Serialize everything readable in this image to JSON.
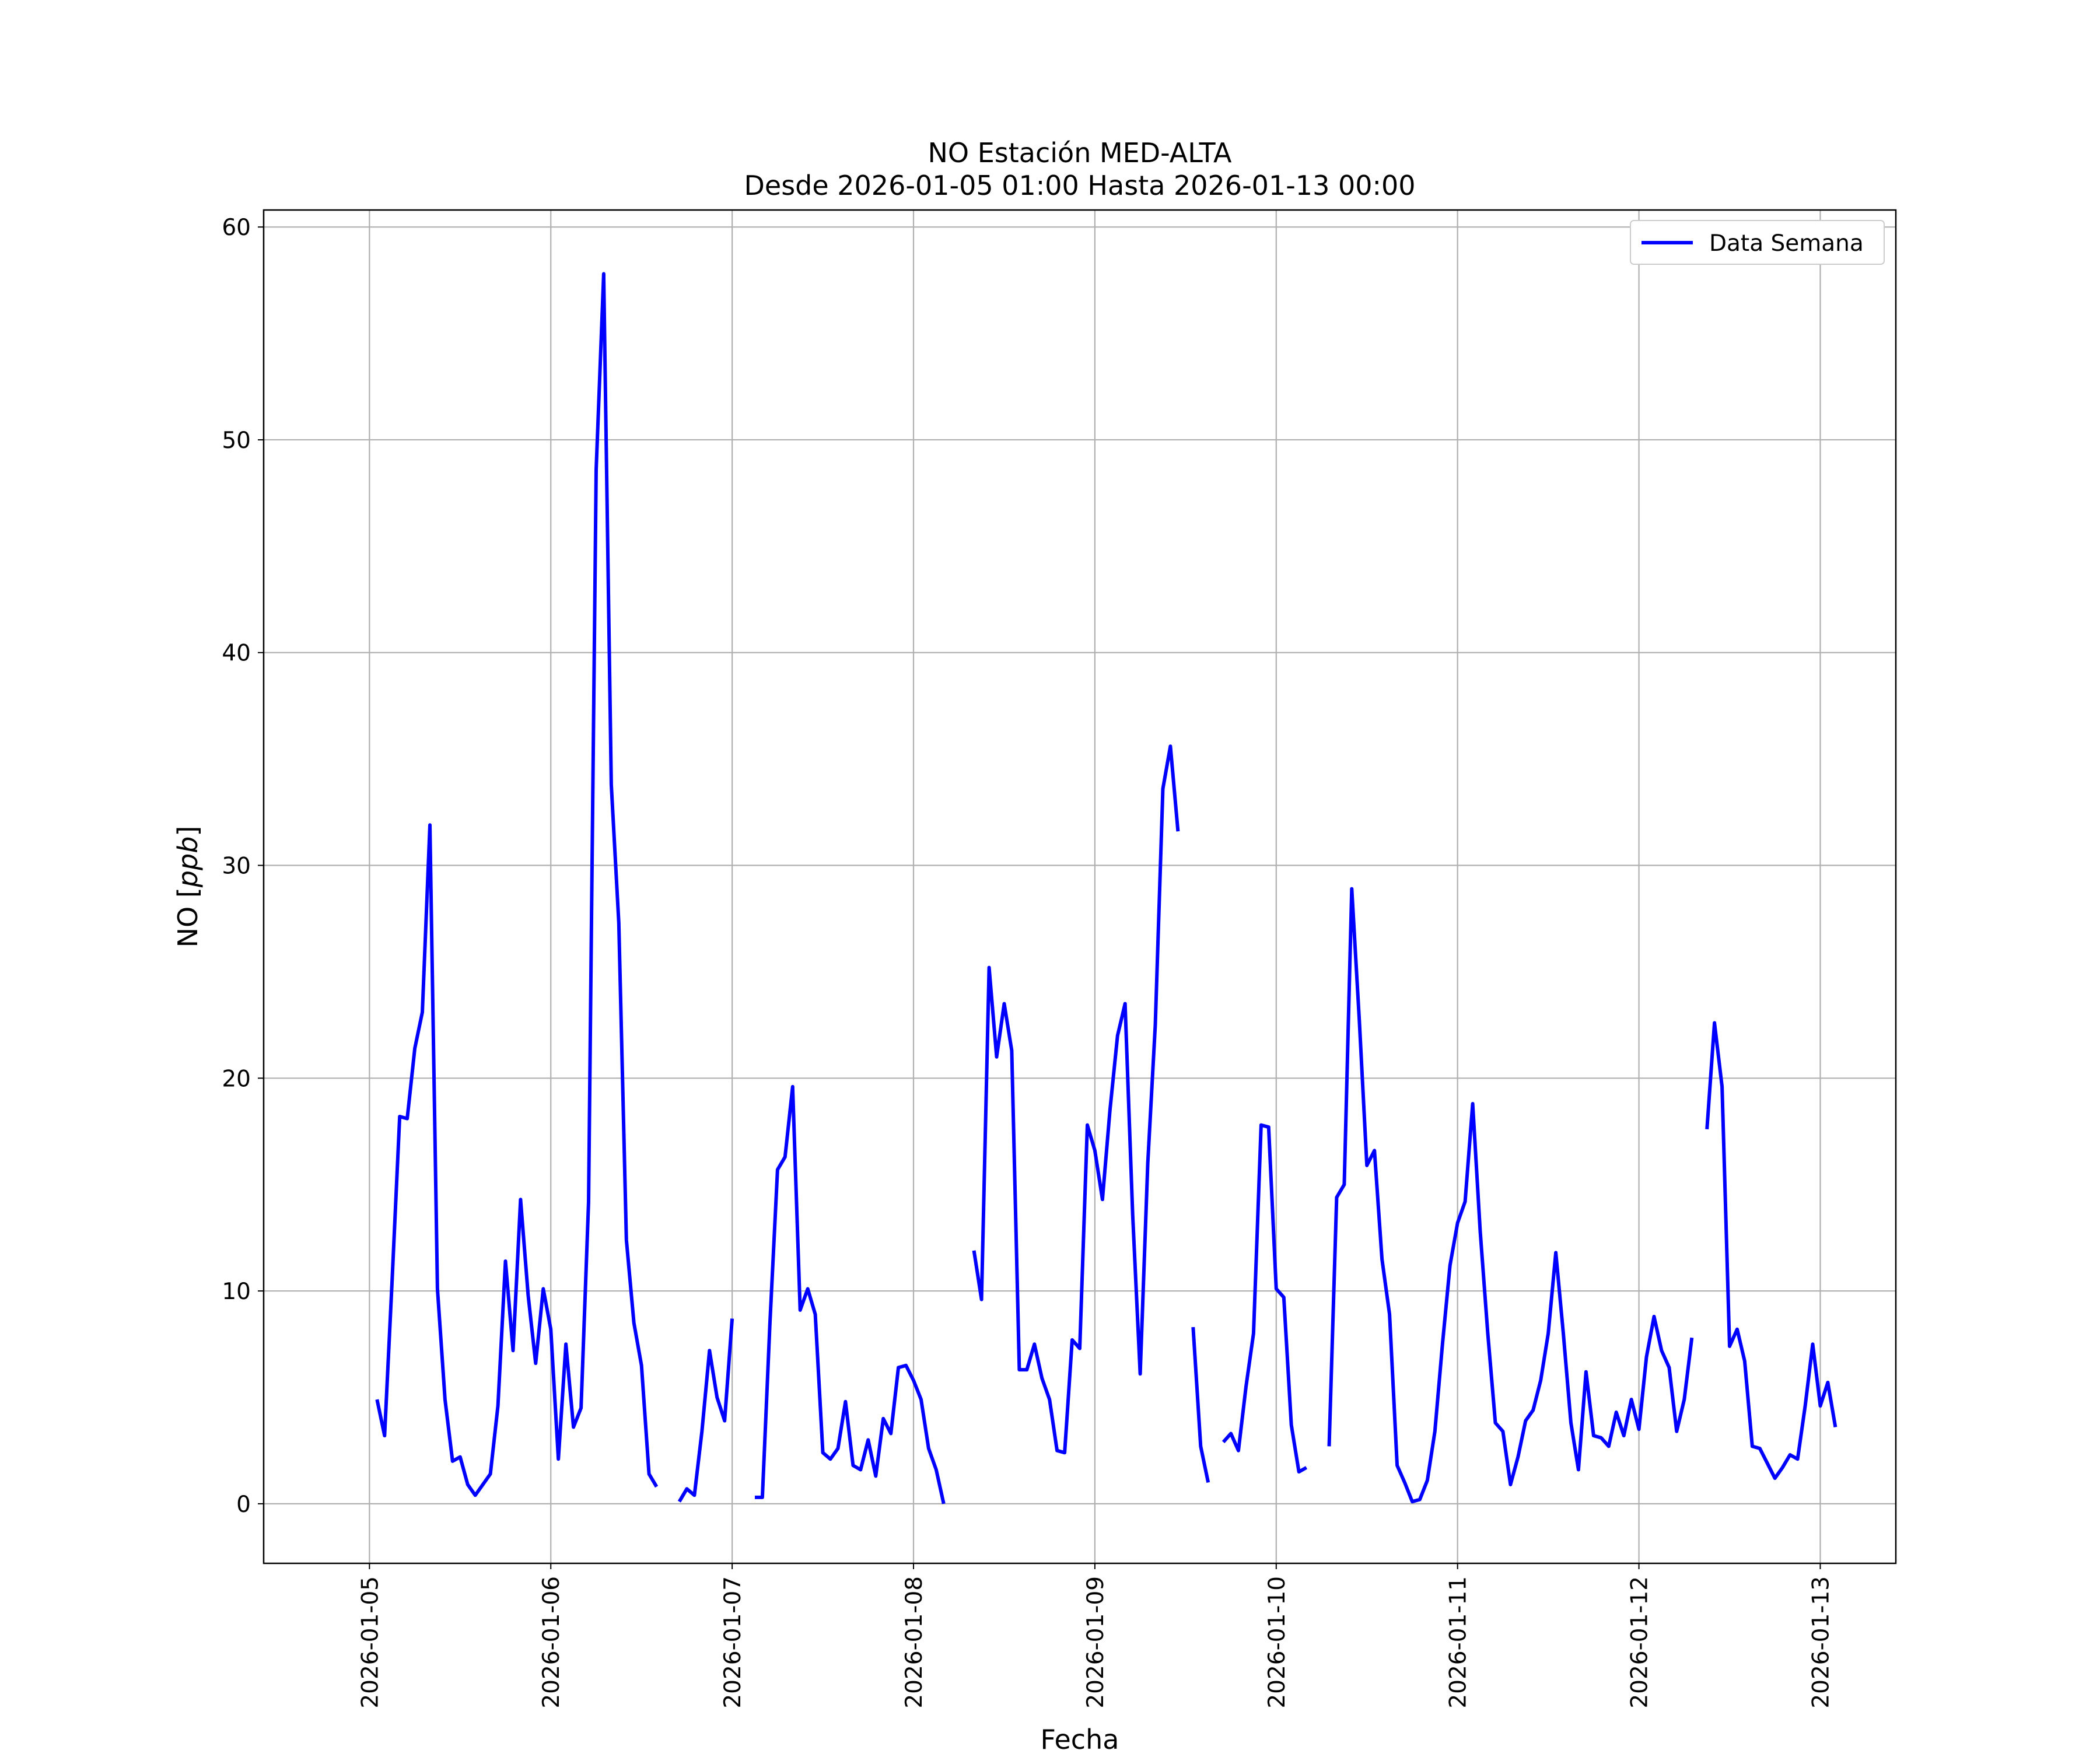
{
  "chart_data": {
    "type": "line",
    "title": "NO Estación MED-ALTA",
    "subtitle": "Desde 2026-01-05 01:00 Hasta 2026-01-13 00:00",
    "xlabel": "Fecha",
    "ylabel_main": "NO [",
    "ylabel_unit": "ppb",
    "ylabel_close": "]",
    "x_start": "2026-01-05 01:00",
    "x_step_hours": 1,
    "xlim": [
      "2026-01-04 10:00",
      "2026-01-13 10:00"
    ],
    "ylim": [
      -2.8,
      60.8
    ],
    "xticks": [
      "2026-01-05",
      "2026-01-06",
      "2026-01-07",
      "2026-01-08",
      "2026-01-09",
      "2026-01-10",
      "2026-01-11",
      "2026-01-12",
      "2026-01-13"
    ],
    "yticks": [
      0,
      10,
      20,
      30,
      40,
      50,
      60
    ],
    "grid": true,
    "legend_position": "top-right",
    "series": [
      {
        "name": "Data Semana",
        "color": "#0000ff",
        "values": [
          4.9,
          3.2,
          10.5,
          18.2,
          18.1,
          21.4,
          23.1,
          31.9,
          10.1,
          4.9,
          2.0,
          2.2,
          0.9,
          0.4,
          0.9,
          1.4,
          4.6,
          11.4,
          7.2,
          14.3,
          9.8,
          6.6,
          10.1,
          8.2,
          2.1,
          7.5,
          3.6,
          4.5,
          14.2,
          48.6,
          57.8,
          33.8,
          27.3,
          12.4,
          8.5,
          6.5,
          1.4,
          0.8,
          null,
          null,
          0.1,
          0.7,
          0.4,
          3.4,
          7.2,
          5.0,
          3.9,
          8.7,
          null,
          null,
          0.3,
          0.3,
          8.5,
          15.7,
          16.3,
          19.6,
          9.1,
          10.1,
          8.9,
          2.4,
          2.1,
          2.6,
          4.8,
          1.8,
          1.6,
          3.0,
          1.3,
          4.0,
          3.3,
          6.4,
          6.5,
          5.8,
          4.9,
          2.6,
          1.6,
          0.0,
          null,
          null,
          null,
          11.9,
          9.6,
          25.2,
          21.0,
          23.5,
          21.3,
          6.3,
          6.3,
          7.5,
          5.9,
          4.9,
          2.5,
          2.4,
          7.7,
          7.3,
          17.8,
          16.6,
          14.3,
          18.5,
          22.0,
          23.5,
          13.6,
          6.1,
          16.0,
          22.5,
          33.6,
          35.6,
          31.6,
          null,
          8.3,
          2.7,
          1.0,
          null,
          2.9,
          3.3,
          2.5,
          5.5,
          8.0,
          17.8,
          17.7,
          10.1,
          9.7,
          3.7,
          1.5,
          1.7,
          null,
          null,
          2.7,
          14.4,
          15.0,
          28.9,
          22.7,
          15.9,
          16.6,
          11.5,
          8.9,
          1.8,
          1.0,
          0.1,
          0.2,
          1.1,
          3.4,
          7.5,
          11.2,
          13.2,
          14.2,
          18.8,
          12.8,
          8.0,
          3.8,
          3.4,
          0.9,
          2.2,
          3.9,
          4.4,
          5.8,
          8.0,
          11.8,
          8.0,
          3.8,
          1.6,
          6.2,
          3.2,
          3.1,
          2.7,
          4.3,
          3.2,
          4.9,
          3.5,
          6.9,
          8.8,
          7.2,
          6.4,
          3.4,
          4.9,
          7.8,
          null,
          17.6,
          22.6,
          19.6,
          7.4,
          8.2,
          6.7,
          2.7,
          2.6,
          1.9,
          1.2,
          1.7,
          2.3,
          2.1,
          4.6,
          7.5,
          4.6,
          5.7,
          3.6
        ]
      }
    ]
  }
}
